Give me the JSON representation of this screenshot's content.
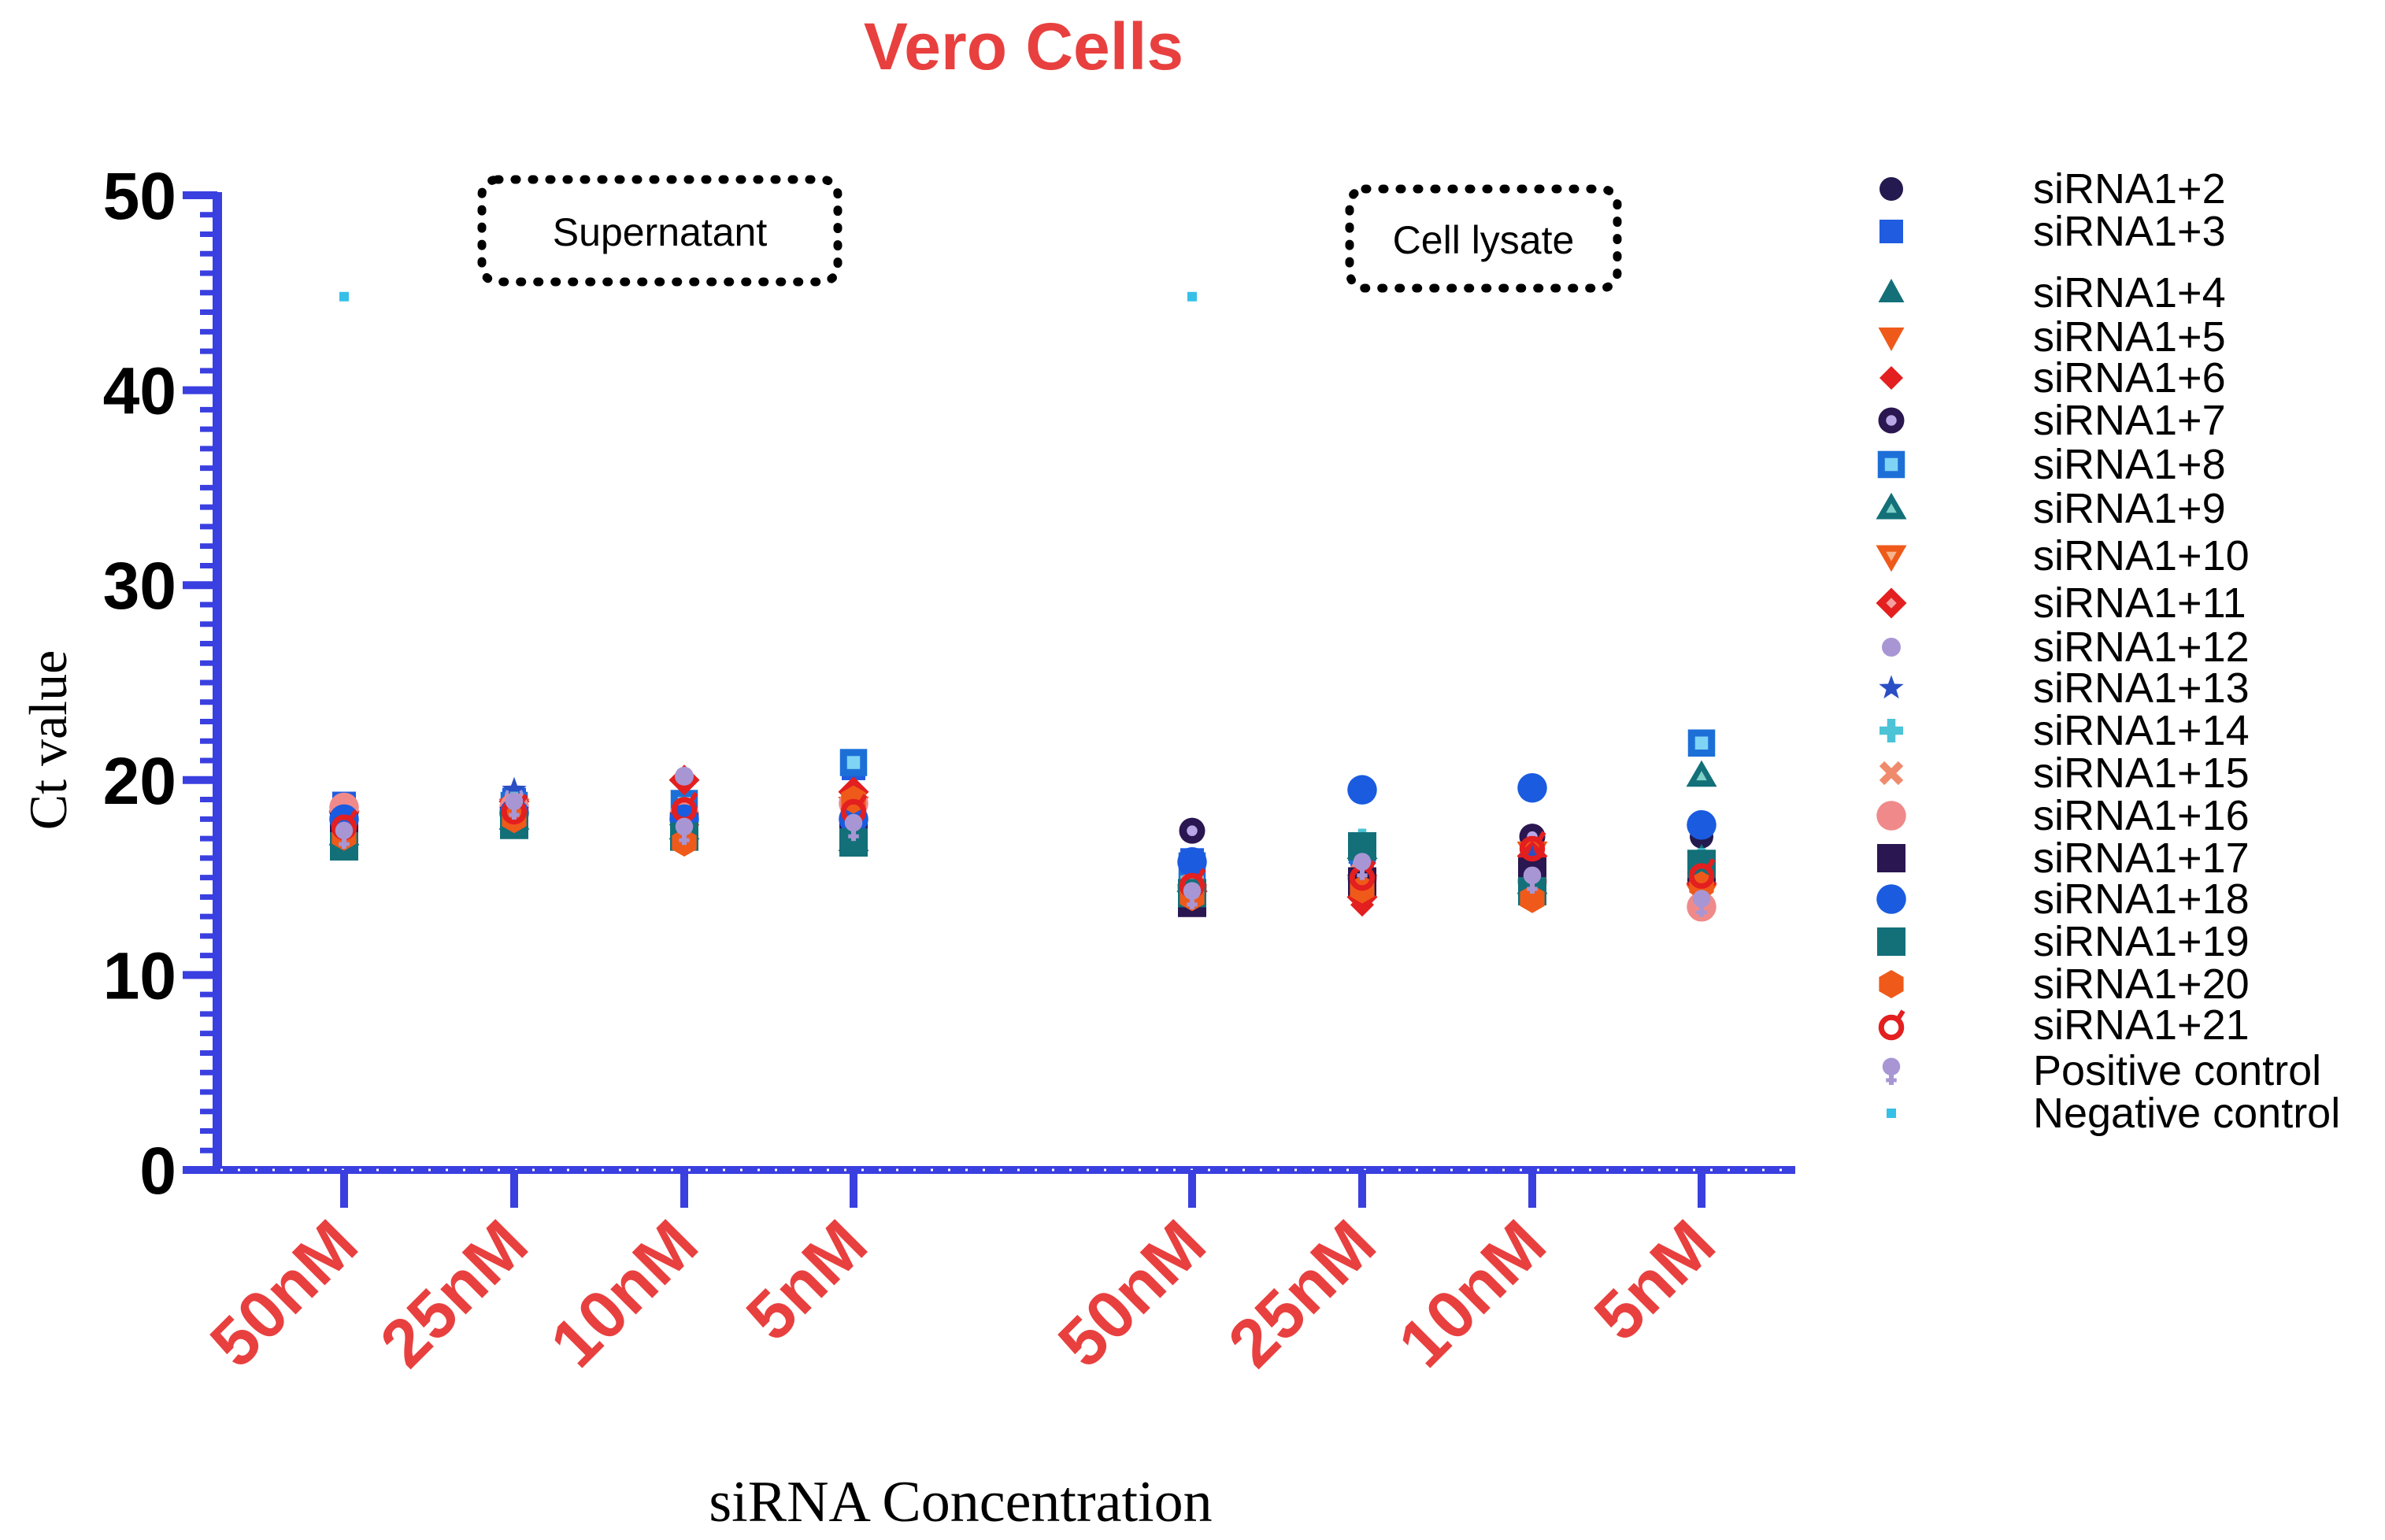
{
  "chart_data": {
    "type": "scatter",
    "title": "Vero Cells",
    "xlabel": "siRNA Concentration",
    "ylabel": "Ct value",
    "ylim": [
      0,
      50
    ],
    "yticks": [
      0,
      10,
      20,
      30,
      40,
      50
    ],
    "legend_position": "right",
    "colors": {
      "title": "#e8403f",
      "category_labels": "#e8403f",
      "axis": "#3a3fe0",
      "text": "#000000"
    },
    "groups": [
      {
        "label": "Supernatant",
        "categories": [
          "50nM",
          "25nM",
          "10nM",
          "5nM"
        ]
      },
      {
        "label": "Cell lysate",
        "categories": [
          "50nM",
          "25nM",
          "10nM",
          "5nM"
        ]
      }
    ],
    "series": [
      {
        "name": "siRNA1+2",
        "marker": "circle",
        "color": "#241a4f",
        "values": [
          17.9,
          18.0,
          17.6,
          17.3,
          15.0,
          15.3,
          14.9,
          17.1
        ]
      },
      {
        "name": "siRNA1+3",
        "marker": "square",
        "color": "#1f5ce0",
        "values": [
          18.8,
          19.0,
          18.4,
          20.6,
          15.9,
          16.2,
          15.8,
          14.9
        ]
      },
      {
        "name": "siRNA1+4",
        "marker": "triangle",
        "color": "#137079",
        "values": [
          17.0,
          18.6,
          17.3,
          16.7,
          14.4,
          16.8,
          14.6,
          16.0
        ]
      },
      {
        "name": "siRNA1+5",
        "marker": "triangle-down",
        "color": "#ef5a1a",
        "values": [
          17.5,
          18.2,
          17.0,
          18.2,
          13.8,
          14.2,
          14.0,
          14.4
        ]
      },
      {
        "name": "siRNA1+6",
        "marker": "diamond",
        "color": "#e31f1f",
        "values": [
          18.3,
          18.4,
          19.9,
          19.2,
          14.6,
          13.6,
          15.2,
          15.1
        ]
      },
      {
        "name": "siRNA1+7",
        "marker": "circle-ring",
        "color": "#2a1650",
        "values": [
          17.6,
          18.3,
          18.1,
          17.8,
          17.4,
          14.9,
          17.1,
          15.6
        ]
      },
      {
        "name": "siRNA1+8",
        "marker": "square-ring",
        "color": "#1d6fd8",
        "values": [
          18.1,
          18.7,
          18.8,
          20.9,
          15.6,
          16.4,
          15.4,
          21.9
        ]
      },
      {
        "name": "siRNA1+9",
        "marker": "triangle-ring",
        "color": "#137079",
        "values": [
          17.2,
          18.0,
          17.5,
          16.9,
          14.8,
          16.5,
          14.7,
          20.2
        ]
      },
      {
        "name": "siRNA1+10",
        "marker": "triangle-down-ring",
        "color": "#ef5a1a",
        "values": [
          17.8,
          18.5,
          17.2,
          18.6,
          14.1,
          14.6,
          16.3,
          14.1
        ]
      },
      {
        "name": "siRNA1+11",
        "marker": "diamond-ring",
        "color": "#e31f1f",
        "values": [
          18.4,
          18.9,
          20.0,
          19.4,
          14.3,
          14.0,
          16.1,
          14.7
        ]
      },
      {
        "name": "siRNA1+12",
        "marker": "circle-small",
        "color": "#a896d4",
        "values": [
          18.2,
          19.2,
          20.2,
          18.3,
          15.4,
          15.7,
          15.6,
          14.2
        ]
      },
      {
        "name": "siRNA1+13",
        "marker": "star",
        "color": "#2a4fc4",
        "values": [
          17.3,
          19.5,
          18.0,
          17.5,
          13.6,
          14.8,
          16.0,
          15.3
        ]
      },
      {
        "name": "siRNA1+14",
        "marker": "plus",
        "color": "#4cc3d6",
        "values": [
          16.9,
          18.8,
          17.8,
          17.1,
          14.9,
          16.9,
          15.1,
          15.9
        ]
      },
      {
        "name": "siRNA1+15",
        "marker": "cross",
        "color": "#f08a6c",
        "values": [
          17.4,
          18.1,
          17.3,
          17.9,
          14.2,
          15.2,
          14.4,
          13.9
        ]
      },
      {
        "name": "siRNA1+16",
        "marker": "circle-large",
        "color": "#f08a8a",
        "values": [
          18.6,
          18.6,
          18.2,
          18.8,
          14.5,
          15.0,
          14.8,
          13.5
        ]
      },
      {
        "name": "siRNA1+17",
        "marker": "square-large",
        "color": "#2a1650",
        "values": [
          17.6,
          17.9,
          17.6,
          17.2,
          13.7,
          14.8,
          15.3,
          15.5
        ]
      },
      {
        "name": "siRNA1+18",
        "marker": "circle-large",
        "color": "#1a5be0",
        "values": [
          18.0,
          18.3,
          18.0,
          18.0,
          15.8,
          19.5,
          19.6,
          17.7
        ]
      },
      {
        "name": "siRNA1+19",
        "marker": "square-large",
        "color": "#137079",
        "values": [
          16.6,
          17.7,
          17.1,
          16.8,
          14.2,
          16.6,
          14.3,
          15.7
        ]
      },
      {
        "name": "siRNA1+20",
        "marker": "hexagon",
        "color": "#ef5a1a",
        "values": [
          17.1,
          18.0,
          16.8,
          19.0,
          14.0,
          14.4,
          13.9,
          14.6
        ]
      },
      {
        "name": "siRNA1+21",
        "marker": "female",
        "color": "#e31f1f",
        "values": [
          17.7,
          18.5,
          18.6,
          18.5,
          14.7,
          15.1,
          16.6,
          15.2
        ]
      },
      {
        "name": "Positive control",
        "marker": "male",
        "color": "#a896d4",
        "values": [
          17.2,
          18.7,
          17.4,
          17.6,
          14.1,
          15.6,
          14.9,
          13.7
        ]
      },
      {
        "name": "Negative control",
        "marker": "dot",
        "color": "#36c0e8",
        "values": [
          44.8,
          null,
          null,
          null,
          44.8,
          null,
          null,
          null
        ]
      }
    ]
  }
}
